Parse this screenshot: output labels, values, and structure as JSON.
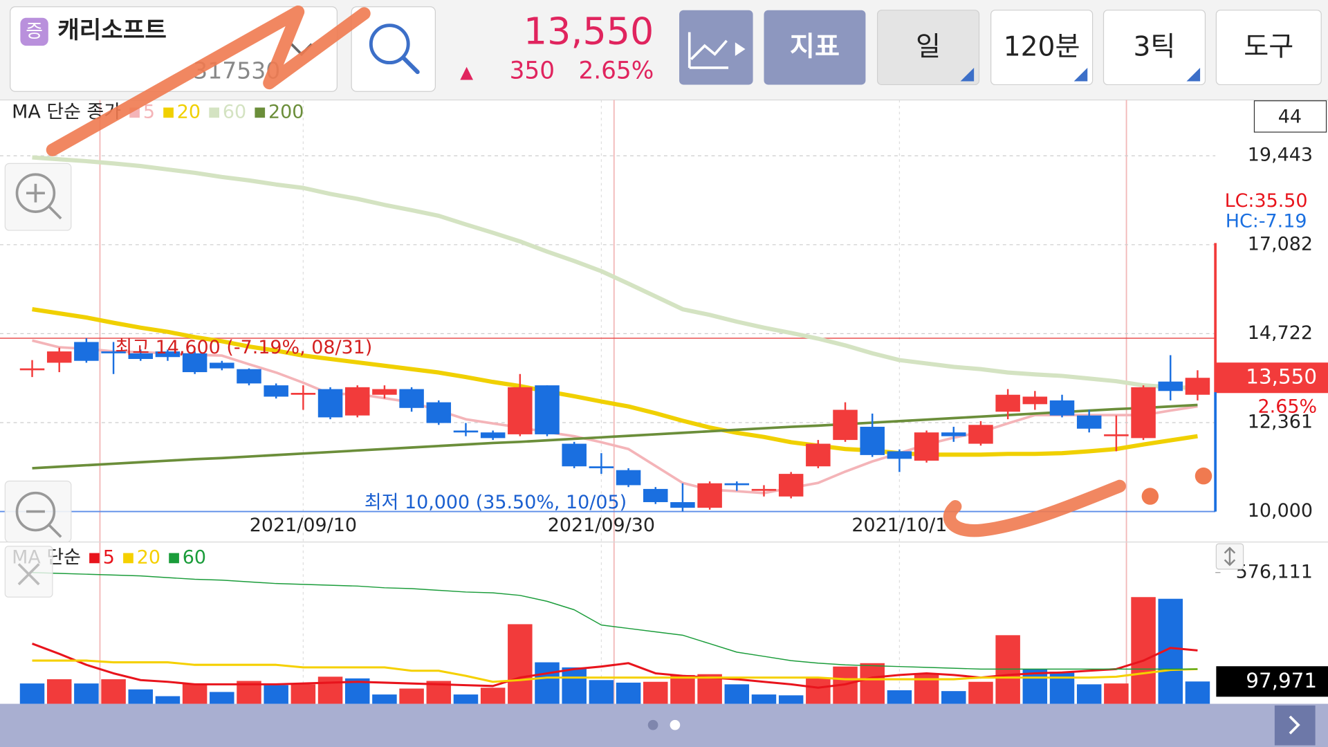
{
  "header": {
    "badge": "증",
    "name": "캐리소프트",
    "code": "317530",
    "price": "13,550",
    "arrow": "▲",
    "change": "350",
    "change_pct": "2.65%",
    "buttons": [
      "지표",
      "일",
      "120분",
      "3틱",
      "도구"
    ],
    "visible_count": 44,
    "lc": "LC:35.50",
    "hc": "HC:-7.19"
  },
  "chart_data": [
    {
      "type": "candlestick",
      "legend_title": "MA 단순 종가",
      "up_color": "#f23b3b",
      "down_color": "#1a6fe0",
      "grid": true,
      "categories": [
        null,
        null,
        null,
        null,
        null,
        null,
        null,
        null,
        null,
        null,
        "2021/09/10",
        null,
        null,
        null,
        null,
        null,
        null,
        null,
        null,
        null,
        null,
        "2021/09/30",
        null,
        null,
        null,
        null,
        null,
        null,
        null,
        null,
        null,
        null,
        "2021/10/1",
        null,
        null,
        null,
        null,
        null,
        null,
        null,
        null,
        null,
        null,
        null
      ],
      "open": [
        13750,
        13950,
        14500,
        14250,
        14200,
        14250,
        14200,
        13950,
        13780,
        13350,
        13100,
        13250,
        12550,
        13100,
        13250,
        12900,
        12150,
        12100,
        12050,
        13350,
        11800,
        11200,
        11100,
        10600,
        10250,
        10100,
        10750,
        10550,
        10400,
        11200,
        11900,
        12250,
        11600,
        11350,
        12100,
        11800,
        12650,
        12850,
        12950,
        12550,
        12000,
        11950,
        13450,
        13100
      ],
      "high": [
        14020,
        14350,
        14600,
        14500,
        14300,
        14300,
        14250,
        14000,
        13800,
        13400,
        13350,
        13300,
        13350,
        13350,
        13300,
        12950,
        12350,
        12150,
        13650,
        13350,
        11850,
        11550,
        11150,
        10650,
        10750,
        10800,
        10800,
        10700,
        11050,
        11900,
        12900,
        12600,
        11650,
        12150,
        12250,
        12400,
        13250,
        13200,
        13100,
        12700,
        12550,
        13350,
        14150,
        13750
      ],
      "low": [
        13570,
        13700,
        13950,
        13650,
        14000,
        14000,
        13650,
        13750,
        13350,
        13000,
        12700,
        12450,
        12500,
        13000,
        12650,
        12300,
        12000,
        11900,
        12000,
        12000,
        11150,
        11000,
        10650,
        10200,
        10000,
        10050,
        10550,
        10400,
        10350,
        11150,
        11850,
        11450,
        11050,
        11300,
        11850,
        11750,
        12450,
        12700,
        12500,
        12100,
        11600,
        11900,
        12950,
        12950
      ],
      "close": [
        13800,
        14250,
        14000,
        14200,
        14050,
        14100,
        13700,
        13800,
        13400,
        13050,
        13150,
        12500,
        13300,
        13250,
        12750,
        12350,
        12100,
        11950,
        13300,
        12050,
        11200,
        11150,
        10700,
        10250,
        10100,
        10750,
        10700,
        10600,
        11000,
        11800,
        12700,
        11500,
        11400,
        12100,
        12000,
        12300,
        13100,
        13050,
        12550,
        12200,
        12050,
        13300,
        13200,
        13550
      ],
      "series": [
        {
          "name": "5",
          "color": "#f4b4b8",
          "values": [
            14540,
            14360,
            14320,
            14250,
            14230,
            14200,
            14160,
            14140,
            13910,
            13690,
            13420,
            13120,
            13120,
            13010,
            12900,
            12680,
            12450,
            12340,
            12230,
            12110,
            12000,
            11840,
            11660,
            11210,
            10760,
            10580,
            10540,
            10490,
            10630,
            10760,
            11060,
            11330,
            11550,
            11780,
            11960,
            12110,
            12340,
            12560,
            12560,
            12560,
            12560,
            12560,
            12680,
            12790
          ]
        },
        {
          "name": "20",
          "color": "#f0d000",
          "values": [
            15370,
            15260,
            15150,
            15010,
            14880,
            14770,
            14630,
            14520,
            14380,
            14270,
            14140,
            14050,
            13960,
            13870,
            13780,
            13690,
            13570,
            13440,
            13330,
            13190,
            13060,
            12920,
            12790,
            12610,
            12410,
            12230,
            12090,
            11980,
            11840,
            11750,
            11660,
            11620,
            11550,
            11510,
            11510,
            11510,
            11530,
            11530,
            11550,
            11600,
            11660,
            11780,
            11890,
            12000
          ]
        },
        {
          "name": "60",
          "color": "#d4e3c2",
          "values": [
            19400,
            19350,
            19300,
            19240,
            19170,
            19080,
            18990,
            18880,
            18790,
            18680,
            18590,
            18430,
            18300,
            18140,
            18000,
            17850,
            17620,
            17400,
            17170,
            16900,
            16650,
            16380,
            16050,
            15710,
            15370,
            15220,
            15040,
            14880,
            14740,
            14590,
            14410,
            14200,
            14020,
            13930,
            13840,
            13780,
            13690,
            13640,
            13600,
            13530,
            13460,
            13350,
            13300,
            13280
          ]
        },
        {
          "name": "200",
          "color": "#6b8e3a",
          "values": [
            11150,
            11190,
            11230,
            11270,
            11310,
            11350,
            11390,
            11420,
            11460,
            11500,
            11540,
            11580,
            11620,
            11660,
            11700,
            11740,
            11780,
            11820,
            11850,
            11890,
            11930,
            11970,
            12010,
            12050,
            12090,
            12130,
            12170,
            12210,
            12250,
            12280,
            12320,
            12360,
            12400,
            12440,
            12480,
            12520,
            12560,
            12600,
            12640,
            12680,
            12720,
            12750,
            12790,
            12830
          ]
        }
      ],
      "ylim": [
        10000,
        20925
      ],
      "yticks": [
        {
          "value": 10000,
          "label": "10,000"
        },
        {
          "value": 12361,
          "label": "12,361"
        },
        {
          "value": 14722,
          "label": "14,722"
        },
        {
          "value": 17082,
          "label": "17,082"
        },
        {
          "value": 19443,
          "label": "19,443"
        }
      ],
      "last_price": {
        "value": 13550,
        "label": "13,550"
      },
      "high_label": "최고 14,600 (-7.19%, 08/31)",
      "low_label": "최저 10,000 (35.50%, 10/05)"
    },
    {
      "type": "bar",
      "legend_title": "MA 단순",
      "up_color": "#f23b3b",
      "down_color": "#1a6fe0",
      "values": [
        89200,
        107800,
        89200,
        107800,
        63200,
        33500,
        89200,
        52000,
        100400,
        81800,
        85500,
        119000,
        111500,
        40900,
        66900,
        100400,
        40900,
        70600,
        349400,
        182100,
        159800,
        104100,
        92900,
        96600,
        126400,
        130100,
        85500,
        40900,
        37200,
        115200,
        163500,
        178400,
        59500,
        133800,
        55800,
        96600,
        301100,
        152400,
        141200,
        85500,
        89200,
        468300,
        460900,
        97971
      ],
      "series": [
        {
          "name": "5",
          "color": "#e8141c",
          "values": [
            263900,
            219300,
            171000,
            133800,
            104100,
            96600,
            85500,
            85500,
            85500,
            85500,
            89200,
            92900,
            96600,
            92900,
            89200,
            85500,
            81800,
            78100,
            115200,
            133800,
            152400,
            163500,
            178400,
            133800,
            122700,
            115200,
            107800,
            96600,
            85500,
            70600,
            85500,
            115200,
            126400,
            133800,
            126400,
            115200,
            126400,
            133800,
            137500,
            145000,
            152400,
            189600,
            245300,
            234200
          ]
        },
        {
          "name": "20",
          "color": "#f5d000",
          "values": [
            189600,
            189600,
            189600,
            182100,
            182100,
            182100,
            171000,
            171000,
            171000,
            171000,
            159800,
            159800,
            159800,
            159800,
            145000,
            145000,
            122700,
            96600,
            104100,
            115200,
            115200,
            115200,
            115200,
            115200,
            115200,
            115200,
            115200,
            115200,
            115200,
            115200,
            107800,
            107800,
            107800,
            107800,
            107800,
            115200,
            115200,
            115200,
            115200,
            115200,
            118900,
            133800,
            148700,
            152400
          ]
        },
        {
          "name": "60",
          "color": "#1a9c3a",
          "values": [
            576100,
            572400,
            568700,
            565000,
            561300,
            553800,
            546400,
            542700,
            535200,
            527800,
            524100,
            520400,
            516700,
            509200,
            505500,
            498100,
            490600,
            486900,
            475800,
            449800,
            412600,
            345700,
            330800,
            315900,
            301100,
            263900,
            226700,
            208200,
            189600,
            178400,
            171000,
            167300,
            163500,
            159800,
            156100,
            152400,
            152400,
            152400,
            152400,
            152400,
            152400,
            152400,
            152400,
            152400
          ]
        }
      ],
      "ylim": [
        0,
        576111
      ],
      "yticks": [
        {
          "value": 576111,
          "label": "576,111"
        }
      ],
      "last_value": {
        "value": 97971,
        "label": "97,971"
      }
    }
  ]
}
